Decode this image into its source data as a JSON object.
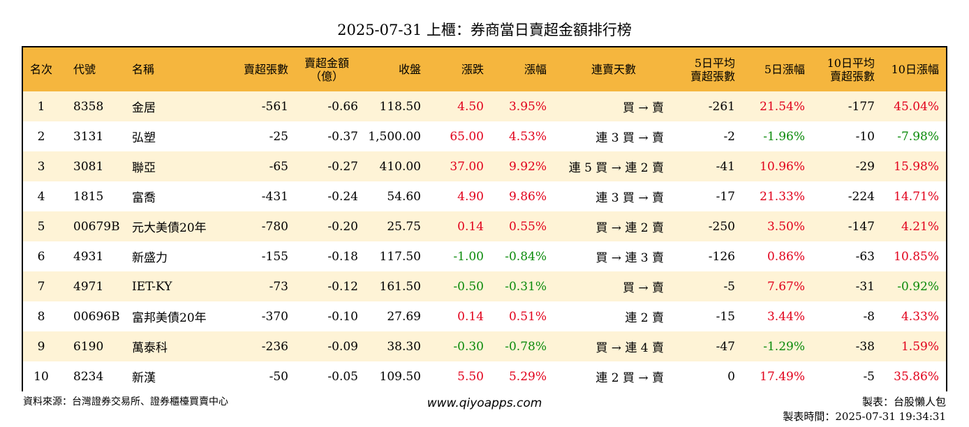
{
  "title": "2025-07-31 上櫃：券商當日賣超金額排行榜",
  "columns": [
    {
      "line1": "名次",
      "line2": ""
    },
    {
      "line1": "代號",
      "line2": ""
    },
    {
      "line1": "名稱",
      "line2": ""
    },
    {
      "line1": "賣超張數",
      "line2": ""
    },
    {
      "line1": "賣超金額",
      "line2": "（億）"
    },
    {
      "line1": "收盤",
      "line2": ""
    },
    {
      "line1": "漲跌",
      "line2": ""
    },
    {
      "line1": "漲幅",
      "line2": ""
    },
    {
      "line1": "連賣天數",
      "line2": ""
    },
    {
      "line1": "5日平均",
      "line2": "賣超張數"
    },
    {
      "line1": "5日漲幅",
      "line2": ""
    },
    {
      "line1": "10日平均",
      "line2": "賣超張數"
    },
    {
      "line1": "10日漲幅",
      "line2": ""
    }
  ],
  "rows": [
    {
      "rank": "1",
      "code": "8358",
      "name": "金居",
      "sell_lots": "-561",
      "sell_amount": "-0.66",
      "close": "118.50",
      "change": "4.50",
      "pct": "3.95%",
      "streak": "買 → 賣",
      "avg5": "-261",
      "pct5": "21.54%",
      "avg10": "-177",
      "pct10": "45.04%",
      "tone": {
        "change": "up",
        "pct": "up",
        "pct5": "up",
        "pct10": "up"
      }
    },
    {
      "rank": "2",
      "code": "3131",
      "name": "弘塑",
      "sell_lots": "-25",
      "sell_amount": "-0.37",
      "close": "1,500.00",
      "change": "65.00",
      "pct": "4.53%",
      "streak": "連 3 買 → 賣",
      "avg5": "-2",
      "pct5": "-1.96%",
      "avg10": "-10",
      "pct10": "-7.98%",
      "tone": {
        "change": "up",
        "pct": "up",
        "pct5": "down",
        "pct10": "down"
      }
    },
    {
      "rank": "3",
      "code": "3081",
      "name": "聯亞",
      "sell_lots": "-65",
      "sell_amount": "-0.27",
      "close": "410.00",
      "change": "37.00",
      "pct": "9.92%",
      "streak": "連 5 買 → 連 2 賣",
      "avg5": "-41",
      "pct5": "10.96%",
      "avg10": "-29",
      "pct10": "15.98%",
      "tone": {
        "change": "up",
        "pct": "up",
        "pct5": "up",
        "pct10": "up"
      }
    },
    {
      "rank": "4",
      "code": "1815",
      "name": "富喬",
      "sell_lots": "-431",
      "sell_amount": "-0.24",
      "close": "54.60",
      "change": "4.90",
      "pct": "9.86%",
      "streak": "連 3 買 → 賣",
      "avg5": "-17",
      "pct5": "21.33%",
      "avg10": "-224",
      "pct10": "14.71%",
      "tone": {
        "change": "up",
        "pct": "up",
        "pct5": "up",
        "pct10": "up"
      }
    },
    {
      "rank": "5",
      "code": "00679B",
      "name": "元大美債20年",
      "sell_lots": "-780",
      "sell_amount": "-0.20",
      "close": "25.75",
      "change": "0.14",
      "pct": "0.55%",
      "streak": "買 → 連 2 賣",
      "avg5": "-250",
      "pct5": "3.50%",
      "avg10": "-147",
      "pct10": "4.21%",
      "tone": {
        "change": "up",
        "pct": "up",
        "pct5": "up",
        "pct10": "up"
      }
    },
    {
      "rank": "6",
      "code": "4931",
      "name": "新盛力",
      "sell_lots": "-155",
      "sell_amount": "-0.18",
      "close": "117.50",
      "change": "-1.00",
      "pct": "-0.84%",
      "streak": "買 → 連 3 賣",
      "avg5": "-126",
      "pct5": "0.86%",
      "avg10": "-63",
      "pct10": "10.85%",
      "tone": {
        "change": "down",
        "pct": "down",
        "pct5": "up",
        "pct10": "up"
      }
    },
    {
      "rank": "7",
      "code": "4971",
      "name": "IET-KY",
      "sell_lots": "-73",
      "sell_amount": "-0.12",
      "close": "161.50",
      "change": "-0.50",
      "pct": "-0.31%",
      "streak": "買 → 賣",
      "avg5": "-5",
      "pct5": "7.67%",
      "avg10": "-31",
      "pct10": "-0.92%",
      "tone": {
        "change": "down",
        "pct": "down",
        "pct5": "up",
        "pct10": "down"
      }
    },
    {
      "rank": "8",
      "code": "00696B",
      "name": "富邦美債20年",
      "sell_lots": "-370",
      "sell_amount": "-0.10",
      "close": "27.69",
      "change": "0.14",
      "pct": "0.51%",
      "streak": "連 2 賣",
      "avg5": "-15",
      "pct5": "3.44%",
      "avg10": "-8",
      "pct10": "4.33%",
      "tone": {
        "change": "up",
        "pct": "up",
        "pct5": "up",
        "pct10": "up"
      }
    },
    {
      "rank": "9",
      "code": "6190",
      "name": "萬泰科",
      "sell_lots": "-236",
      "sell_amount": "-0.09",
      "close": "38.30",
      "change": "-0.30",
      "pct": "-0.78%",
      "streak": "買 → 連 4 賣",
      "avg5": "-47",
      "pct5": "-1.29%",
      "avg10": "-38",
      "pct10": "1.59%",
      "tone": {
        "change": "down",
        "pct": "down",
        "pct5": "down",
        "pct10": "up"
      }
    },
    {
      "rank": "10",
      "code": "8234",
      "name": "新漢",
      "sell_lots": "-50",
      "sell_amount": "-0.05",
      "close": "109.50",
      "change": "5.50",
      "pct": "5.29%",
      "streak": "連 2 買 → 賣",
      "avg5": "0",
      "pct5": "17.49%",
      "avg10": "-5",
      "pct10": "35.86%",
      "tone": {
        "change": "up",
        "pct": "up",
        "pct5": "up",
        "pct10": "up"
      }
    }
  ],
  "footer": {
    "source": "資料來源：台灣證券交易所、證券櫃檯買賣中心",
    "site": "www.qiyoapps.com",
    "author": "製表：台股懶人包",
    "time": "製表時間：2025-07-31 19:34:31"
  },
  "colors": {
    "header_bg": "#f5b63e",
    "row_odd_bg": "#fef3d6",
    "row_even_bg": "#ffffff",
    "up": "#e1001b",
    "down": "#0a8a0a"
  }
}
